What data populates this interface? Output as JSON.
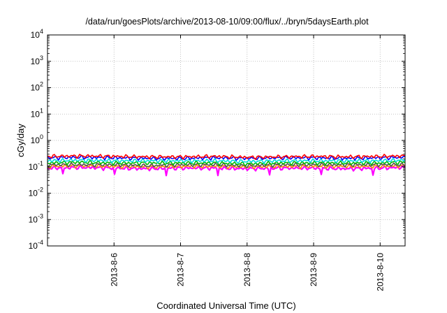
{
  "chart_data": {
    "type": "line",
    "title": "/data/run/goesPlots/archive/2013-08-10/09:00/flux/../bryn/5daysEarth.plot",
    "xlabel": "Coordinated Universal Time (UTC)",
    "ylabel": "cGy/day",
    "yscale": "log",
    "ylim": [
      0.0001,
      10000
    ],
    "xlim": [
      "2013-08-05 00:00",
      "2013-08-10 09:00"
    ],
    "grid": true,
    "legend": "none",
    "y_ticks": [
      {
        "value": 0.0001,
        "base": "10",
        "exp": "-4"
      },
      {
        "value": 0.001,
        "base": "10",
        "exp": "-3"
      },
      {
        "value": 0.01,
        "base": "10",
        "exp": "-2"
      },
      {
        "value": 0.1,
        "base": "10",
        "exp": "-1"
      },
      {
        "value": 1,
        "base": "10",
        "exp": "0"
      },
      {
        "value": 10,
        "base": "10",
        "exp": "1"
      },
      {
        "value": 100,
        "base": "10",
        "exp": "2"
      },
      {
        "value": 1000,
        "base": "10",
        "exp": "3"
      },
      {
        "value": 10000,
        "base": "10",
        "exp": "4"
      }
    ],
    "x_ticks": [
      {
        "date": "2013-08-06",
        "label": "2013-8-6"
      },
      {
        "date": "2013-08-07",
        "label": "2013-8-7"
      },
      {
        "date": "2013-08-08",
        "label": "2013-8-8"
      },
      {
        "date": "2013-08-09",
        "label": "2013-8-9"
      },
      {
        "date": "2013-08-10",
        "label": "2013-8-10"
      }
    ],
    "x": [
      "2013-08-05 00:00",
      "2013-08-05 12:00",
      "2013-08-06 00:00",
      "2013-08-06 12:00",
      "2013-08-07 00:00",
      "2013-08-07 12:00",
      "2013-08-08 00:00",
      "2013-08-08 12:00",
      "2013-08-09 00:00",
      "2013-08-09 12:00",
      "2013-08-10 00:00",
      "2013-08-10 09:00"
    ],
    "series": [
      {
        "color": "#ff0000",
        "values": [
          0.25,
          0.26,
          0.25,
          0.24,
          0.24,
          0.25,
          0.23,
          0.24,
          0.25,
          0.24,
          0.25,
          0.26
        ]
      },
      {
        "color": "#0000ff",
        "values": [
          0.22,
          0.23,
          0.22,
          0.21,
          0.21,
          0.22,
          0.21,
          0.22,
          0.22,
          0.21,
          0.22,
          0.23
        ]
      },
      {
        "color": "#00dddd",
        "values": [
          0.17,
          0.18,
          0.17,
          0.17,
          0.17,
          0.17,
          0.16,
          0.17,
          0.17,
          0.17,
          0.17,
          0.18
        ]
      },
      {
        "color": "#00bb00",
        "values": [
          0.14,
          0.15,
          0.14,
          0.14,
          0.14,
          0.14,
          0.13,
          0.14,
          0.14,
          0.14,
          0.14,
          0.15
        ]
      },
      {
        "color": "#555555",
        "values": [
          0.12,
          0.12,
          0.12,
          0.11,
          0.12,
          0.12,
          0.11,
          0.12,
          0.12,
          0.12,
          0.12,
          0.12
        ]
      },
      {
        "color": "#ff8c00",
        "values": [
          0.105,
          0.11,
          0.105,
          0.1,
          0.105,
          0.105,
          0.1,
          0.105,
          0.105,
          0.105,
          0.105,
          0.11
        ]
      },
      {
        "color": "#ff00ff",
        "values": [
          0.09,
          0.095,
          0.09,
          0.085,
          0.09,
          0.09,
          0.085,
          0.09,
          0.09,
          0.085,
          0.09,
          0.095
        ]
      }
    ]
  }
}
